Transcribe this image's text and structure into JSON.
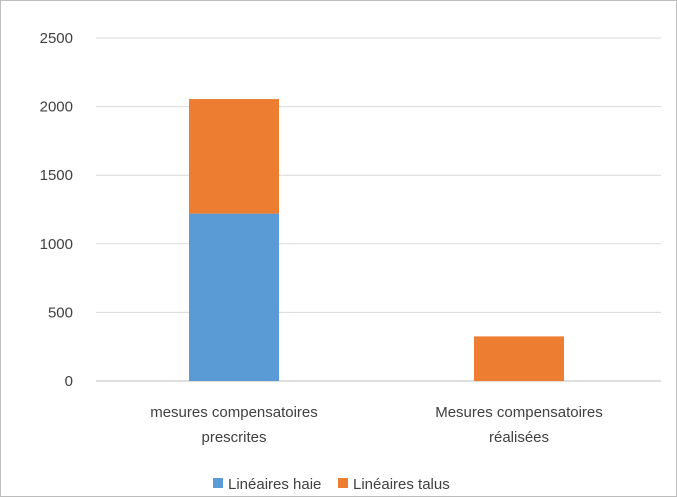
{
  "chart_data": {
    "type": "bar",
    "stacked": true,
    "categories": [
      [
        "mesures compensatoires",
        "prescrites"
      ],
      [
        "Mesures compensatoires",
        "réalisées"
      ]
    ],
    "series": [
      {
        "name": "Linéaires haie",
        "values": [
          1220,
          0
        ],
        "color": "#5b9bd5"
      },
      {
        "name": "Linéaires talus",
        "values": [
          835,
          325
        ],
        "color": "#ed7d31"
      }
    ],
    "yticks": [
      0,
      500,
      1000,
      1500,
      2000,
      2500
    ],
    "ylim": [
      0,
      2500
    ],
    "grid": true,
    "legend_position": "bottom"
  }
}
